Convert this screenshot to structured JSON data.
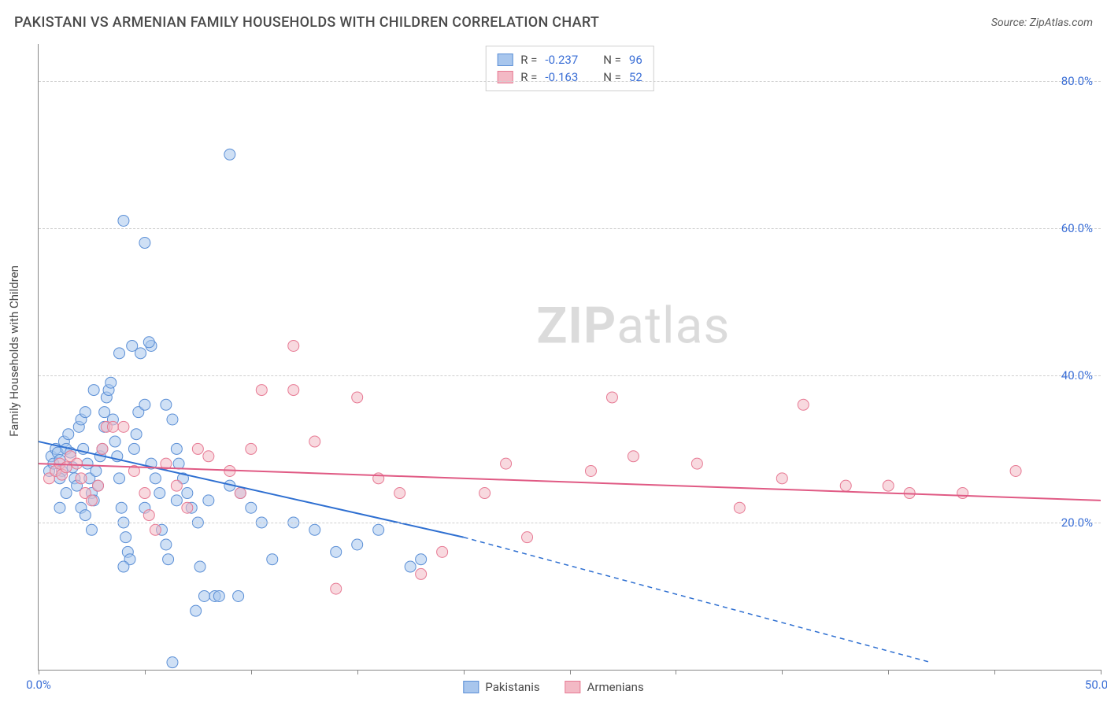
{
  "title": "PAKISTANI VS ARMENIAN FAMILY HOUSEHOLDS WITH CHILDREN CORRELATION CHART",
  "source": "Source: ZipAtlas.com",
  "y_axis_title": "Family Households with Children",
  "watermark_bold": "ZIP",
  "watermark_rest": "atlas",
  "chart": {
    "type": "scatter",
    "background_color": "#ffffff",
    "grid_color": "#d0d0d0",
    "axis_color": "#888888",
    "xlim": [
      0,
      50
    ],
    "ylim": [
      0,
      85
    ],
    "x_ticks": [
      0,
      5,
      10,
      15,
      20,
      25,
      30,
      35,
      40,
      45,
      50
    ],
    "x_tick_labels": {
      "0": "0.0%",
      "50": "50.0%"
    },
    "y_gridlines": [
      20,
      40,
      60,
      80
    ],
    "y_tick_labels": {
      "20": "20.0%",
      "40": "40.0%",
      "60": "60.0%",
      "80": "80.0%"
    },
    "axis_label_color": "#3b6fd6",
    "marker_radius": 7,
    "marker_opacity": 0.55,
    "trend_line_width": 2,
    "series": [
      {
        "key": "pakistanis",
        "label": "Pakistanis",
        "fill": "#a8c6ed",
        "stroke": "#5b8fd6",
        "trend_color": "#2e6fd1",
        "R": "-0.237",
        "N": "96",
        "trend": {
          "x1": 0,
          "y1": 31,
          "x2_solid": 20,
          "y2_solid": 18,
          "x2_dash": 42,
          "y2_dash": 1
        },
        "points": [
          [
            0.5,
            27
          ],
          [
            0.6,
            29
          ],
          [
            0.7,
            28
          ],
          [
            0.8,
            30
          ],
          [
            0.9,
            29.5
          ],
          [
            1.0,
            28.5
          ],
          [
            1.1,
            27
          ],
          [
            1.2,
            31
          ],
          [
            1.0,
            26
          ],
          [
            1.3,
            30
          ],
          [
            1.4,
            32
          ],
          [
            1.5,
            29.5
          ],
          [
            1.6,
            27.5
          ],
          [
            1.7,
            26
          ],
          [
            1.8,
            25
          ],
          [
            1.3,
            24
          ],
          [
            1.0,
            22
          ],
          [
            1.9,
            33
          ],
          [
            2.0,
            34
          ],
          [
            2.2,
            35
          ],
          [
            2.1,
            30
          ],
          [
            2.3,
            28
          ],
          [
            2.4,
            26
          ],
          [
            2.5,
            24
          ],
          [
            2.0,
            22
          ],
          [
            2.2,
            21
          ],
          [
            2.5,
            19
          ],
          [
            2.6,
            23
          ],
          [
            2.8,
            25
          ],
          [
            2.7,
            27
          ],
          [
            2.9,
            29
          ],
          [
            3.0,
            30
          ],
          [
            3.1,
            33
          ],
          [
            3.1,
            35
          ],
          [
            3.2,
            37
          ],
          [
            3.3,
            38
          ],
          [
            2.6,
            38
          ],
          [
            3.4,
            39
          ],
          [
            3.5,
            34
          ],
          [
            3.6,
            31
          ],
          [
            3.7,
            29
          ],
          [
            3.8,
            26
          ],
          [
            3.9,
            22
          ],
          [
            4.0,
            20
          ],
          [
            4.1,
            18
          ],
          [
            4.2,
            16
          ],
          [
            4.3,
            15
          ],
          [
            4.0,
            14
          ],
          [
            4.5,
            30
          ],
          [
            4.6,
            32
          ],
          [
            4.7,
            35
          ],
          [
            4.8,
            43
          ],
          [
            3.8,
            43
          ],
          [
            4.4,
            44
          ],
          [
            5.3,
            44
          ],
          [
            5.2,
            44.5
          ],
          [
            5.0,
            36
          ],
          [
            5.3,
            28
          ],
          [
            5.5,
            26
          ],
          [
            5.7,
            24
          ],
          [
            5.0,
            22
          ],
          [
            5.8,
            19
          ],
          [
            6.0,
            17
          ],
          [
            6.1,
            15
          ],
          [
            6.3,
            1
          ],
          [
            4.0,
            61
          ],
          [
            5.0,
            58
          ],
          [
            9.0,
            70
          ],
          [
            6.0,
            36
          ],
          [
            6.3,
            34
          ],
          [
            6.5,
            30
          ],
          [
            6.6,
            28
          ],
          [
            6.8,
            26
          ],
          [
            7.0,
            24
          ],
          [
            6.5,
            23
          ],
          [
            7.2,
            22
          ],
          [
            7.5,
            20
          ],
          [
            7.6,
            14
          ],
          [
            7.8,
            10
          ],
          [
            8.3,
            10
          ],
          [
            8.5,
            10
          ],
          [
            9.4,
            10
          ],
          [
            7.4,
            8
          ],
          [
            8.0,
            23
          ],
          [
            9.0,
            25
          ],
          [
            9.5,
            24
          ],
          [
            10.0,
            22
          ],
          [
            10.5,
            20
          ],
          [
            12.0,
            20
          ],
          [
            13.0,
            19
          ],
          [
            11.0,
            15
          ],
          [
            14.0,
            16
          ],
          [
            15.0,
            17
          ],
          [
            16.0,
            19
          ],
          [
            17.5,
            14
          ],
          [
            18.0,
            15
          ]
        ]
      },
      {
        "key": "armenians",
        "label": "Armenians",
        "fill": "#f3b9c5",
        "stroke": "#e77a94",
        "trend_color": "#e05a84",
        "R": "-0.163",
        "N": "52",
        "trend": {
          "x1": 0,
          "y1": 28,
          "x2_solid": 50,
          "y2_solid": 23,
          "x2_dash": 50,
          "y2_dash": 23
        },
        "points": [
          [
            0.5,
            26
          ],
          [
            0.8,
            27
          ],
          [
            1.0,
            28
          ],
          [
            1.1,
            26.5
          ],
          [
            1.3,
            27.5
          ],
          [
            1.5,
            29
          ],
          [
            1.8,
            28
          ],
          [
            2.0,
            26
          ],
          [
            2.2,
            24
          ],
          [
            2.5,
            23
          ],
          [
            2.8,
            25
          ],
          [
            3.0,
            30
          ],
          [
            3.2,
            33
          ],
          [
            3.5,
            33
          ],
          [
            4.0,
            33
          ],
          [
            4.5,
            27
          ],
          [
            5.0,
            24
          ],
          [
            5.2,
            21
          ],
          [
            5.5,
            19
          ],
          [
            6.0,
            28
          ],
          [
            6.5,
            25
          ],
          [
            7.0,
            22
          ],
          [
            7.5,
            30
          ],
          [
            8.0,
            29
          ],
          [
            9.0,
            27
          ],
          [
            9.5,
            24
          ],
          [
            10.0,
            30
          ],
          [
            10.5,
            38
          ],
          [
            12.0,
            38
          ],
          [
            12.0,
            44
          ],
          [
            13.0,
            31
          ],
          [
            14.0,
            11
          ],
          [
            15.0,
            37
          ],
          [
            16.0,
            26
          ],
          [
            17.0,
            24
          ],
          [
            18.0,
            13
          ],
          [
            19.0,
            16
          ],
          [
            21.0,
            24
          ],
          [
            22.0,
            28
          ],
          [
            23.0,
            18
          ],
          [
            26.0,
            27
          ],
          [
            27.0,
            37
          ],
          [
            28.0,
            29
          ],
          [
            31.0,
            28
          ],
          [
            33.0,
            22
          ],
          [
            36.0,
            36
          ],
          [
            35.0,
            26
          ],
          [
            38.0,
            25
          ],
          [
            40.0,
            25
          ],
          [
            41.0,
            24
          ],
          [
            43.5,
            24
          ],
          [
            46.0,
            27
          ]
        ]
      }
    ],
    "legend_top": {
      "R_label": "R =",
      "N_label": "N ="
    },
    "legend_bottom": [
      "Pakistanis",
      "Armenians"
    ]
  }
}
